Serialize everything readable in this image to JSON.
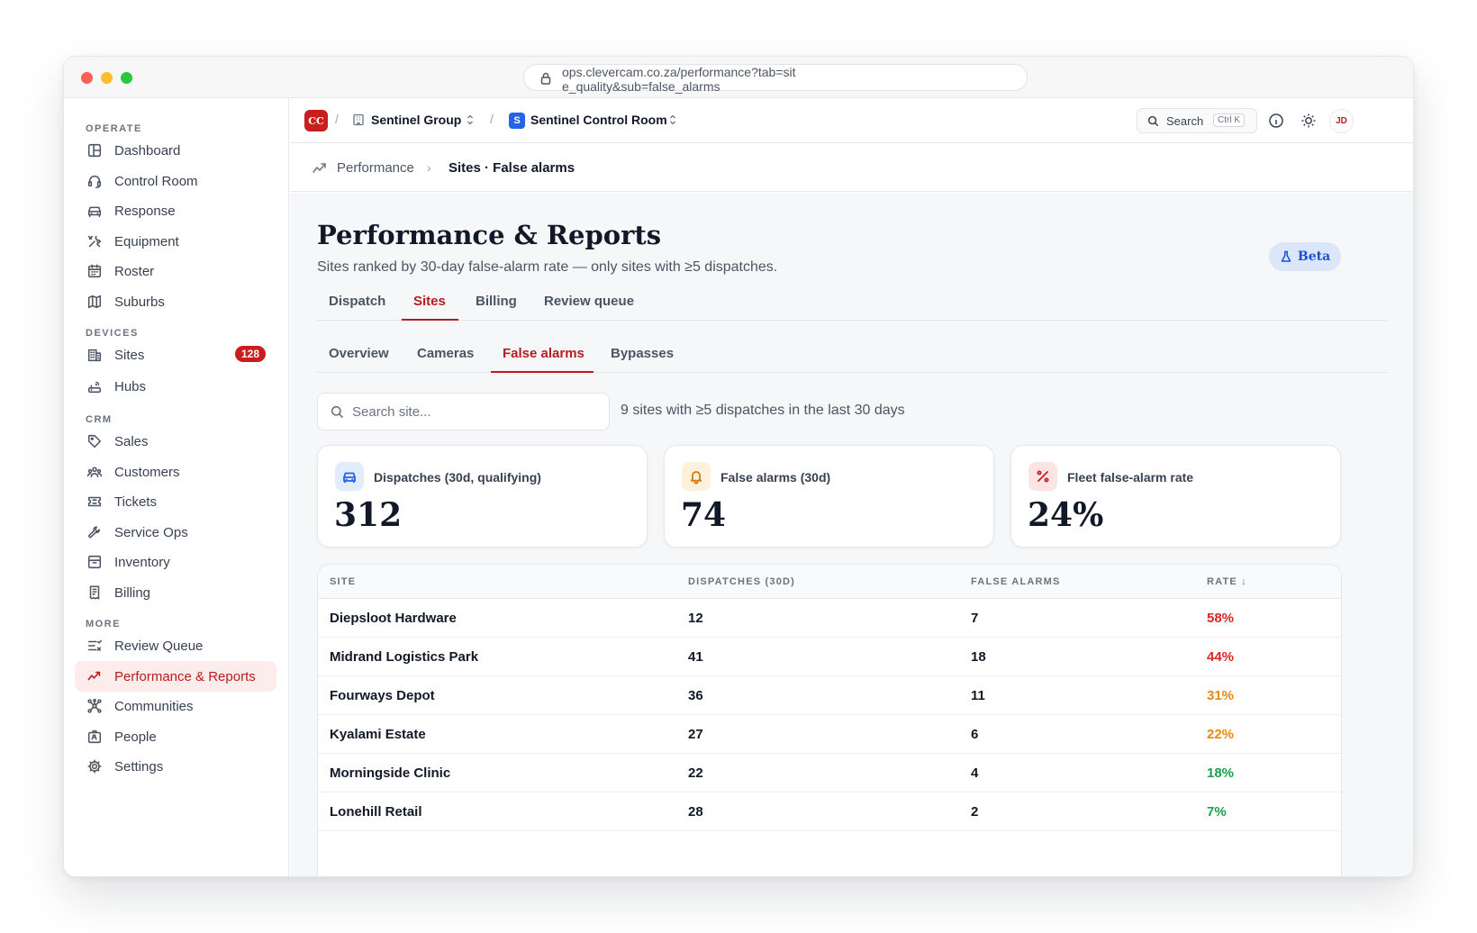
{
  "browser": {
    "url": "ops.clevercam.co.za/performance?tab=site_quality&sub=false_alarms"
  },
  "sidebar": {
    "sections": [
      {
        "title": "OPERATE",
        "items": [
          {
            "label": "Dashboard",
            "icon": "layout-icon"
          },
          {
            "label": "Control Room",
            "icon": "headset-icon"
          },
          {
            "label": "Response",
            "icon": "car-icon"
          },
          {
            "label": "Equipment",
            "icon": "tools-icon"
          },
          {
            "label": "Roster",
            "icon": "calendar-icon"
          },
          {
            "label": "Suburbs",
            "icon": "map-icon"
          }
        ]
      },
      {
        "title": "DEVICES",
        "items": [
          {
            "label": "Sites",
            "icon": "building-icon",
            "badge": "128"
          },
          {
            "label": "Hubs",
            "icon": "router-icon"
          }
        ]
      },
      {
        "title": "CRM",
        "items": [
          {
            "label": "Sales",
            "icon": "tag-icon"
          },
          {
            "label": "Customers",
            "icon": "users-icon"
          },
          {
            "label": "Tickets",
            "icon": "ticket-icon"
          },
          {
            "label": "Service Ops",
            "icon": "wrench-icon"
          },
          {
            "label": "Inventory",
            "icon": "archive-icon"
          },
          {
            "label": "Billing",
            "icon": "receipt-icon"
          }
        ]
      },
      {
        "title": "MORE",
        "items": [
          {
            "label": "Review Queue",
            "icon": "list-check-icon"
          },
          {
            "label": "Performance & Reports",
            "icon": "trend-icon",
            "active": true
          },
          {
            "label": "Communities",
            "icon": "network-icon"
          },
          {
            "label": "People",
            "icon": "id-card-icon"
          },
          {
            "label": "Settings",
            "icon": "gear-icon"
          }
        ]
      }
    ]
  },
  "topbar": {
    "logo": "CC",
    "org": "Sentinel Group",
    "workspace_badge": "S",
    "workspace": "Sentinel Control Room",
    "search_label": "Search",
    "search_shortcut": "Ctrl K",
    "avatar": "JD"
  },
  "breadcrumb": {
    "parent": "Performance",
    "current": "Sites · False alarms"
  },
  "page": {
    "title": "Performance & Reports",
    "subtitle": "Sites ranked by 30-day false-alarm rate — only sites with ≥5 dispatches.",
    "beta": "Beta"
  },
  "tabs": [
    {
      "label": "Dispatch"
    },
    {
      "label": "Sites",
      "active": true
    },
    {
      "label": "Billing"
    },
    {
      "label": "Review queue"
    }
  ],
  "subtabs": [
    {
      "label": "Overview"
    },
    {
      "label": "Cameras"
    },
    {
      "label": "False alarms",
      "active": true
    },
    {
      "label": "Bypasses"
    }
  ],
  "filter": {
    "placeholder": "Search site...",
    "value": "",
    "summary": "9 sites with ≥5 dispatches in the last 30 days"
  },
  "cards": [
    {
      "label": "Dispatches (30d, qualifying)",
      "value": "312",
      "icon": "car-icon",
      "tint": "#e3ecfd",
      "color": "#2563eb"
    },
    {
      "label": "False alarms (30d)",
      "value": "74",
      "icon": "bell-icon",
      "tint": "#fdf1dc",
      "color": "#d97706"
    },
    {
      "label": "Fleet false-alarm rate",
      "value": "24%",
      "icon": "percent-icon",
      "tint": "#fce4e4",
      "color": "#c81e1e"
    }
  ],
  "table": {
    "columns": [
      "SITE",
      "DISPATCHES (30D)",
      "FALSE ALARMS",
      "RATE ↓"
    ],
    "rows": [
      {
        "site": "Diepsloot Hardware",
        "dispatches": "12",
        "false_alarms": "7",
        "rate": "58%",
        "rate_color": "#dc2626"
      },
      {
        "site": "Midrand Logistics Park",
        "dispatches": "41",
        "false_alarms": "18",
        "rate": "44%",
        "rate_color": "#dc2626"
      },
      {
        "site": "Fourways Depot",
        "dispatches": "36",
        "false_alarms": "11",
        "rate": "31%",
        "rate_color": "#e8890b"
      },
      {
        "site": "Kyalami Estate",
        "dispatches": "27",
        "false_alarms": "6",
        "rate": "22%",
        "rate_color": "#e8890b"
      },
      {
        "site": "Morningside Clinic",
        "dispatches": "22",
        "false_alarms": "4",
        "rate": "18%",
        "rate_color": "#16a34a"
      },
      {
        "site": "Lonehill Retail",
        "dispatches": "28",
        "false_alarms": "2",
        "rate": "7%",
        "rate_color": "#16a34a"
      }
    ]
  }
}
